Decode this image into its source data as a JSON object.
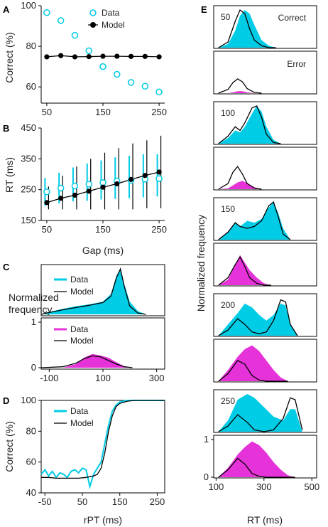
{
  "colors": {
    "cyan": "#00CCE6",
    "magenta": "#E633D9",
    "black": "#000000"
  },
  "chart_data": [
    {
      "panel": "A",
      "type": "scatter",
      "ylabel": "Correct (%)",
      "xlim": [
        40,
        260
      ],
      "ylim": [
        52,
        100
      ],
      "xticks": [
        50,
        150,
        250
      ],
      "yticks": [
        60,
        80,
        100
      ],
      "series": [
        {
          "name": "Data",
          "marker": "open-circle",
          "color": "#00CCE6",
          "x": [
            50,
            75,
            100,
            125,
            150,
            175,
            200,
            225,
            250
          ],
          "y": [
            96.6,
            92.7,
            85.4,
            77.8,
            70.0,
            66.2,
            62.2,
            60.3,
            57.5
          ]
        },
        {
          "name": "Model",
          "marker": "filled-circle-line",
          "color": "#000000",
          "x": [
            50,
            75,
            100,
            125,
            150,
            175,
            200,
            225,
            250
          ],
          "y": [
            74.8,
            75.4,
            74.8,
            74.9,
            75.1,
            75.1,
            75.0,
            75.0,
            74.8
          ]
        }
      ]
    },
    {
      "panel": "B",
      "type": "scatter",
      "xlabel": "Gap (ms)",
      "ylabel": "RT (ms)",
      "xlim": [
        40,
        260
      ],
      "ylim": [
        150,
        450
      ],
      "xticks": [
        50,
        150,
        250
      ],
      "yticks": [
        150,
        250,
        350,
        450
      ],
      "series": [
        {
          "name": "Data",
          "marker": "open-circle",
          "color": "#00CCE6",
          "x": [
            50,
            75,
            100,
            125,
            150,
            175,
            200,
            225,
            250
          ],
          "y": [
            243,
            255,
            262,
            268,
            273,
            278,
            280,
            284,
            286
          ],
          "err_low": [
            198,
            205,
            212,
            214,
            218,
            220,
            222,
            225,
            228
          ],
          "err_high": [
            288,
            305,
            322,
            335,
            345,
            355,
            360,
            365,
            365
          ]
        },
        {
          "name": "Model",
          "marker": "filled-circle-line",
          "color": "#000000",
          "x": [
            50,
            75,
            100,
            125,
            150,
            175,
            200,
            225,
            250
          ],
          "y": [
            208,
            222,
            232,
            245,
            258,
            269,
            283,
            296,
            307
          ],
          "err_low": [
            186,
            186,
            186,
            186,
            186,
            186,
            186,
            190,
            190
          ],
          "err_high": [
            260,
            295,
            325,
            350,
            370,
            385,
            400,
            410,
            425
          ]
        }
      ]
    },
    {
      "panel": "C",
      "type": "area",
      "ylabel": "Normalized frequency",
      "xlim": [
        -130,
        330
      ],
      "xticks": [
        -100,
        100,
        300
      ],
      "yticks": [
        0,
        1
      ],
      "subplots": [
        {
          "series_names": [
            "Data",
            "Model"
          ],
          "fill": "#00CCE6",
          "x": [
            -130,
            -100,
            -50,
            0,
            50,
            100,
            130,
            150,
            165,
            180,
            200,
            230,
            260
          ],
          "data": [
            0.0,
            0.05,
            0.12,
            0.18,
            0.22,
            0.28,
            0.45,
            0.85,
            1.0,
            0.65,
            0.28,
            0.07,
            0.0
          ],
          "model": [
            0.0,
            0.04,
            0.1,
            0.15,
            0.2,
            0.26,
            0.4,
            0.8,
            1.0,
            0.6,
            0.18,
            0.03,
            0.0
          ]
        },
        {
          "series_names": [
            "Data",
            "Model"
          ],
          "fill": "#E633D9",
          "x": [
            -130,
            -50,
            0,
            30,
            60,
            90,
            120,
            150,
            180,
            210
          ],
          "data": [
            0.0,
            0.0,
            0.08,
            0.22,
            0.3,
            0.27,
            0.22,
            0.12,
            0.03,
            0.0
          ],
          "model": [
            0.0,
            0.02,
            0.1,
            0.2,
            0.26,
            0.24,
            0.16,
            0.08,
            0.02,
            0.0
          ]
        }
      ]
    },
    {
      "panel": "D",
      "type": "line",
      "xlabel": "rPT (ms)",
      "ylabel": "Correct (%)",
      "xlim": [
        -60,
        270
      ],
      "ylim": [
        40,
        100
      ],
      "xticks": [
        -50,
        50,
        150,
        250
      ],
      "yticks": [
        40,
        60,
        80,
        100
      ],
      "series": [
        {
          "name": "Data",
          "color": "#00CCE6",
          "x": [
            -60,
            -50,
            -40,
            -30,
            -20,
            -10,
            0,
            10,
            20,
            30,
            40,
            50,
            60,
            70,
            80,
            90,
            100,
            110,
            120,
            130,
            140,
            150,
            170,
            190,
            210,
            230,
            250,
            270
          ],
          "y": [
            52,
            55,
            51,
            54,
            50,
            53,
            52,
            50,
            54,
            55,
            53,
            56,
            55,
            44,
            52,
            56,
            60,
            72,
            84,
            93,
            97,
            99,
            100,
            100,
            100,
            100,
            100,
            100
          ]
        },
        {
          "name": "Model",
          "color": "#000000",
          "x": [
            -60,
            -40,
            -20,
            0,
            20,
            40,
            60,
            80,
            90,
            100,
            110,
            120,
            130,
            140,
            150,
            170,
            190,
            210,
            230,
            250,
            270
          ],
          "y": [
            50,
            50,
            49.5,
            49.5,
            49.5,
            49.5,
            50,
            51,
            52,
            56,
            66,
            80,
            90,
            96,
            98,
            99.5,
            100,
            100,
            100,
            100,
            100
          ]
        }
      ]
    },
    {
      "panel": "E",
      "type": "area",
      "xlabel": "RT (ms)",
      "ylabel": "Normalized frequency",
      "xlim": [
        90,
        520
      ],
      "xticks": [
        100,
        300,
        500
      ],
      "yticks": [
        0,
        1
      ],
      "gap_labels": [
        "50",
        "100",
        "150",
        "200",
        "250"
      ],
      "outcome_labels": [
        "Correct",
        "Error"
      ],
      "rows": [
        {
          "gap": "50",
          "correct": {
            "x": [
              110,
              150,
              180,
              200,
              220,
              240,
              260,
              290,
              320,
              350
            ],
            "data": [
              0.0,
              0.1,
              0.45,
              0.85,
              1.0,
              0.9,
              0.6,
              0.2,
              0.05,
              0.0
            ],
            "model": [
              0.0,
              0.15,
              0.7,
              1.0,
              0.9,
              0.5,
              0.2,
              0.05,
              0.0,
              0.0
            ]
          },
          "error": {
            "x": [
              110,
              150,
              170,
              190,
              210,
              230,
              260,
              290
            ],
            "data": [
              0.0,
              0.0,
              0.02,
              0.05,
              0.05,
              0.02,
              0.0,
              0.0
            ],
            "model": [
              0.0,
              0.1,
              0.28,
              0.38,
              0.3,
              0.12,
              0.02,
              0.0
            ]
          }
        },
        {
          "gap": "100",
          "correct": {
            "x": [
              110,
              150,
              180,
              200,
              220,
              250,
              270,
              290,
              310,
              340,
              370
            ],
            "data": [
              0.0,
              0.15,
              0.35,
              0.3,
              0.45,
              0.8,
              1.0,
              0.85,
              0.45,
              0.1,
              0.0
            ],
            "model": [
              0.0,
              0.2,
              0.45,
              0.35,
              0.55,
              0.95,
              1.0,
              0.7,
              0.25,
              0.03,
              0.0
            ]
          },
          "error": {
            "x": [
              110,
              150,
              170,
              190,
              210,
              230,
              260,
              290
            ],
            "data": [
              0.0,
              0.02,
              0.1,
              0.18,
              0.22,
              0.16,
              0.05,
              0.0
            ],
            "model": [
              0.0,
              0.15,
              0.45,
              0.6,
              0.4,
              0.15,
              0.03,
              0.0
            ]
          }
        },
        {
          "gap": "150",
          "correct": {
            "x": [
              110,
              150,
              180,
              200,
              230,
              260,
              290,
              320,
              340,
              360,
              380,
              410
            ],
            "data": [
              0.0,
              0.2,
              0.45,
              0.35,
              0.5,
              0.45,
              0.55,
              0.85,
              1.0,
              0.7,
              0.3,
              0.0
            ],
            "model": [
              0.0,
              0.2,
              0.45,
              0.35,
              0.3,
              0.35,
              0.5,
              0.9,
              1.0,
              0.6,
              0.15,
              0.0
            ]
          },
          "error": {
            "x": [
              110,
              150,
              180,
              200,
              220,
              240,
              270,
              300,
              330
            ],
            "data": [
              0.0,
              0.15,
              0.55,
              0.8,
              0.6,
              0.4,
              0.2,
              0.05,
              0.0
            ],
            "model": [
              0.0,
              0.2,
              0.55,
              0.75,
              0.5,
              0.2,
              0.05,
              0.0,
              0.0
            ]
          }
        },
        {
          "gap": "200",
          "correct": {
            "x": [
              110,
              150,
              190,
              220,
              250,
              280,
              310,
              340,
              370,
              390,
              410,
              440
            ],
            "data": [
              0.0,
              0.3,
              0.6,
              0.85,
              0.75,
              0.55,
              0.4,
              0.55,
              0.85,
              0.8,
              0.3,
              0.0
            ],
            "model": [
              0.0,
              0.15,
              0.45,
              0.3,
              0.1,
              0.05,
              0.1,
              0.4,
              0.95,
              0.9,
              0.3,
              0.0
            ]
          },
          "error": {
            "x": [
              110,
              150,
              190,
              220,
              250,
              280,
              310,
              340,
              370,
              400
            ],
            "data": [
              0.0,
              0.3,
              0.65,
              0.85,
              0.95,
              0.8,
              0.55,
              0.3,
              0.1,
              0.0
            ],
            "model": [
              0.0,
              0.2,
              0.55,
              0.45,
              0.15,
              0.03,
              0.0,
              0.0,
              0.0,
              0.0
            ]
          }
        },
        {
          "gap": "250",
          "correct": {
            "x": [
              110,
              150,
              190,
              230,
              260,
              300,
              340,
              380,
              410,
              430,
              460
            ],
            "data": [
              0.0,
              0.3,
              0.85,
              1.0,
              0.9,
              0.65,
              0.4,
              0.3,
              0.6,
              0.6,
              0.0
            ],
            "model": [
              0.0,
              0.15,
              0.45,
              0.25,
              0.05,
              0.0,
              0.05,
              0.35,
              0.9,
              0.85,
              0.05
            ]
          },
          "error": {
            "x": [
              110,
              150,
              190,
              220,
              250,
              280,
              310,
              340,
              370,
              400,
              430
            ],
            "data": [
              0.0,
              0.25,
              0.6,
              0.8,
              0.95,
              0.85,
              0.65,
              0.4,
              0.2,
              0.05,
              0.0
            ],
            "model": [
              0.0,
              0.2,
              0.5,
              0.35,
              0.1,
              0.02,
              0.0,
              0.0,
              0.0,
              0.0,
              0.0
            ]
          }
        }
      ]
    }
  ]
}
